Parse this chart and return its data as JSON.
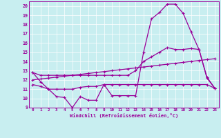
{
  "xlabel": "Windchill (Refroidissement éolien,°C)",
  "bg_color": "#c8eef0",
  "line_color": "#990099",
  "x_ticks": [
    0,
    1,
    2,
    3,
    4,
    5,
    6,
    7,
    8,
    9,
    10,
    11,
    12,
    13,
    14,
    15,
    16,
    17,
    18,
    19,
    20,
    21,
    22,
    23
  ],
  "ylim": [
    9,
    20
  ],
  "y_ticks": [
    9,
    10,
    11,
    12,
    13,
    14,
    15,
    16,
    17,
    18,
    19,
    20
  ],
  "line1_x": [
    0,
    1,
    2,
    3,
    4,
    5,
    6,
    7,
    8,
    9,
    10,
    11,
    12,
    13,
    14,
    15,
    16,
    17,
    18,
    19,
    20,
    21,
    22,
    23
  ],
  "line1_y": [
    12.8,
    11.8,
    11.0,
    10.2,
    10.1,
    9.0,
    10.2,
    9.8,
    9.8,
    11.5,
    10.3,
    10.3,
    10.3,
    10.3,
    15.0,
    18.6,
    19.3,
    20.2,
    20.2,
    19.2,
    17.2,
    15.3,
    12.2,
    11.1
  ],
  "line2_x": [
    0,
    1,
    2,
    3,
    4,
    5,
    6,
    7,
    8,
    9,
    10,
    11,
    12,
    13,
    14,
    15,
    16,
    17,
    18,
    19,
    20,
    21,
    22,
    23
  ],
  "line2_y": [
    11.5,
    11.3,
    11.0,
    11.0,
    11.0,
    11.0,
    11.2,
    11.3,
    11.3,
    11.5,
    11.5,
    11.5,
    11.5,
    11.5,
    11.5,
    11.5,
    11.5,
    11.5,
    11.5,
    11.5,
    11.5,
    11.5,
    11.5,
    11.1
  ],
  "line3_x": [
    0,
    1,
    2,
    3,
    4,
    5,
    6,
    7,
    8,
    9,
    10,
    11,
    12,
    13,
    14,
    15,
    16,
    17,
    18,
    19,
    20,
    21,
    22,
    23
  ],
  "line3_y": [
    12.0,
    12.1,
    12.2,
    12.3,
    12.4,
    12.5,
    12.6,
    12.7,
    12.8,
    12.9,
    13.0,
    13.1,
    13.2,
    13.3,
    13.4,
    13.5,
    13.6,
    13.7,
    13.8,
    13.9,
    14.0,
    14.1,
    14.2,
    14.3
  ],
  "line4_x": [
    0,
    1,
    2,
    3,
    4,
    5,
    6,
    7,
    8,
    9,
    10,
    11,
    12,
    13,
    14,
    15,
    16,
    17,
    18,
    19,
    20,
    21,
    22,
    23
  ],
  "line4_y": [
    12.8,
    12.5,
    12.5,
    12.5,
    12.5,
    12.5,
    12.5,
    12.5,
    12.5,
    12.5,
    12.5,
    12.5,
    12.5,
    13.0,
    14.0,
    14.5,
    15.0,
    15.5,
    15.3,
    15.3,
    15.4,
    15.3,
    12.3,
    11.1
  ]
}
